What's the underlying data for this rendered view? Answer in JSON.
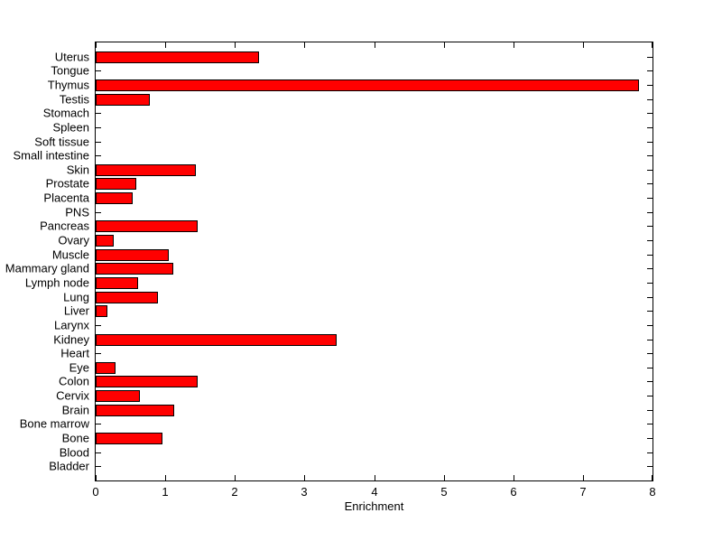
{
  "figure": {
    "background": "#ffffff",
    "text_color": "#000000",
    "axis_color": "#000000"
  },
  "chart_data": {
    "type": "bar",
    "orientation": "horizontal",
    "title": "",
    "xlabel": "Enrichment",
    "ylabel": "",
    "xlim": [
      0,
      8
    ],
    "xticks": [
      0,
      1,
      2,
      3,
      4,
      5,
      6,
      7,
      8
    ],
    "grid": false,
    "legend": null,
    "bar_color": "#ff0000",
    "bar_edge_color": "#000000",
    "categories": [
      "Uterus",
      "Tongue",
      "Thymus",
      "Testis",
      "Stomach",
      "Spleen",
      "Soft tissue",
      "Small intestine",
      "Skin",
      "Prostate",
      "Placenta",
      "PNS",
      "Pancreas",
      "Ovary",
      "Muscle",
      "Mammary gland",
      "Lymph node",
      "Lung",
      "Liver",
      "Larynx",
      "Kidney",
      "Heart",
      "Eye",
      "Colon",
      "Cervix",
      "Brain",
      "Bone marrow",
      "Bone",
      "Blood",
      "Bladder"
    ],
    "values": [
      2.35,
      0,
      7.8,
      0.78,
      0,
      0,
      0,
      0,
      1.44,
      0.58,
      0.53,
      0,
      1.46,
      0.26,
      1.05,
      1.12,
      0.61,
      0.9,
      0.17,
      0,
      3.46,
      0,
      0.29,
      1.47,
      0.63,
      1.13,
      0,
      0.96,
      0,
      0
    ]
  }
}
